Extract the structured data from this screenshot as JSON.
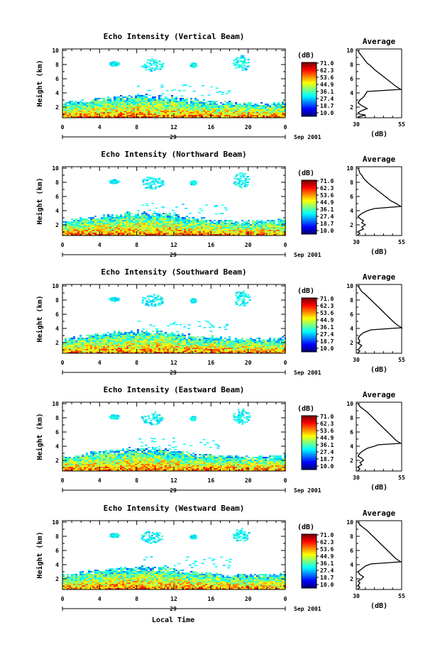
{
  "chart_data": [
    {
      "type": "heatmap",
      "title": "Echo Intensity (Vertical Beam)",
      "ylabel": "Height (km)",
      "xlabel": "",
      "xticks": [
        "0",
        "4",
        "8",
        "12",
        "16",
        "20",
        "0"
      ],
      "xlim": [
        0,
        24
      ],
      "ylim": [
        0.5,
        10.2
      ],
      "yticks": [
        "2",
        "4",
        "6",
        "8",
        "10"
      ],
      "day_label": "29",
      "date_label": "Sep 2001",
      "colorbar": {
        "unit": "(dB)",
        "ticks": [
          "71.0",
          "62.3",
          "53.6",
          "44.9",
          "36.1",
          "27.4",
          "18.7",
          "10.0"
        ]
      },
      "profile": {
        "title": "Average",
        "xlabel": "(dB)",
        "xticks": [
          "30",
          "55"
        ],
        "xlim": [
          30,
          55
        ],
        "yticks": [
          "2",
          "4",
          "6",
          "8",
          "10"
        ],
        "x": [
          31,
          31.5,
          33,
          34.5,
          36,
          38,
          40,
          42,
          44,
          46,
          48,
          50,
          52,
          54.5,
          36,
          35,
          34,
          32,
          31,
          33,
          36,
          33,
          31,
          32,
          35,
          34,
          32,
          31,
          31.5,
          33,
          32,
          31,
          32,
          31,
          31
        ],
        "y": [
          10,
          9.7,
          9.2,
          8.7,
          8.2,
          7.8,
          7.3,
          6.9,
          6.5,
          6.1,
          5.7,
          5.3,
          4.9,
          4.5,
          4.2,
          3.8,
          3.4,
          3.0,
          2.6,
          2.2,
          1.8,
          1.5,
          1.2,
          1.0,
          0.9,
          0.8,
          0.7,
          0.6,
          0.5,
          0.45,
          0.4,
          0.35,
          0.3,
          0.25,
          0.2
        ]
      }
    },
    {
      "type": "heatmap",
      "title": "Echo Intensity (Northward Beam)",
      "ylabel": "Height (km)",
      "xlabel": "",
      "xticks": [
        "0",
        "4",
        "8",
        "12",
        "16",
        "20",
        "0"
      ],
      "xlim": [
        0,
        24
      ],
      "ylim": [
        0.5,
        10.2
      ],
      "yticks": [
        "2",
        "4",
        "6",
        "8",
        "10"
      ],
      "day_label": "29",
      "date_label": "Sep 2001",
      "colorbar": {
        "unit": "(dB)",
        "ticks": [
          "71.0",
          "62.3",
          "53.6",
          "44.9",
          "36.1",
          "27.4",
          "18.7",
          "10.0"
        ]
      },
      "profile": {
        "title": "Average",
        "xlabel": "(dB)",
        "xticks": [
          "30",
          "55"
        ],
        "xlim": [
          30,
          55
        ],
        "yticks": [
          "2",
          "4",
          "6",
          "8",
          "10"
        ],
        "x": [
          31,
          31.5,
          32,
          33,
          34,
          35,
          37,
          39,
          41,
          43,
          45,
          47,
          49,
          52,
          54.5,
          40,
          36,
          33,
          31,
          32,
          34,
          33,
          35,
          33,
          34,
          32,
          31,
          32,
          31,
          31
        ],
        "y": [
          10,
          9.7,
          9.3,
          9.0,
          8.6,
          8.3,
          7.8,
          7.4,
          7.0,
          6.6,
          6.2,
          5.8,
          5.4,
          5.0,
          4.6,
          4.3,
          4.0,
          3.6,
          3.2,
          2.9,
          2.6,
          2.3,
          2.0,
          1.7,
          1.4,
          1.2,
          1.0,
          0.8,
          0.6,
          0.5
        ]
      }
    },
    {
      "type": "heatmap",
      "title": "Echo Intensity (Southward Beam)",
      "ylabel": "Height (km)",
      "xlabel": "",
      "xticks": [
        "0",
        "4",
        "8",
        "12",
        "16",
        "20",
        "0"
      ],
      "xlim": [
        0,
        24
      ],
      "ylim": [
        0.5,
        10.2
      ],
      "yticks": [
        "2",
        "4",
        "6",
        "8",
        "10"
      ],
      "day_label": "29",
      "date_label": "Sep 2001",
      "colorbar": {
        "unit": "(dB)",
        "ticks": [
          "71.0",
          "62.3",
          "53.6",
          "44.9",
          "36.1",
          "27.4",
          "18.7",
          "10.0"
        ]
      },
      "profile": {
        "title": "Average",
        "xlabel": "(dB)",
        "xticks": [
          "30",
          "55"
        ],
        "xlim": [
          30,
          55
        ],
        "yticks": [
          "2",
          "4",
          "6",
          "8",
          "10"
        ],
        "x": [
          31,
          32,
          33,
          35,
          37,
          39,
          41,
          43,
          45,
          47,
          49,
          51,
          53,
          55,
          38,
          34,
          32,
          31,
          32,
          31,
          33,
          32,
          31,
          32,
          31,
          31
        ],
        "y": [
          10,
          9.6,
          9.2,
          8.8,
          8.3,
          7.8,
          7.3,
          6.8,
          6.3,
          5.8,
          5.3,
          4.8,
          4.4,
          4.1,
          3.8,
          3.4,
          3.0,
          2.6,
          2.2,
          1.9,
          1.6,
          1.3,
          1.0,
          0.8,
          0.6,
          0.5
        ]
      }
    },
    {
      "type": "heatmap",
      "title": "Echo Intensity (Eastward Beam)",
      "ylabel": "Height (km)",
      "xlabel": "",
      "xticks": [
        "0",
        "4",
        "8",
        "12",
        "16",
        "20",
        "0"
      ],
      "xlim": [
        0,
        24
      ],
      "ylim": [
        0.5,
        10.2
      ],
      "yticks": [
        "2",
        "4",
        "6",
        "8",
        "10"
      ],
      "day_label": "29",
      "date_label": "Sep 2001",
      "colorbar": {
        "unit": "(dB)",
        "ticks": [
          "71.0",
          "62.3",
          "53.6",
          "44.9",
          "36.1",
          "27.4",
          "18.7",
          "10.0"
        ]
      },
      "profile": {
        "title": "Average",
        "xlabel": "(dB)",
        "xticks": [
          "30",
          "55"
        ],
        "xlim": [
          30,
          55
        ],
        "yticks": [
          "2",
          "4",
          "6",
          "8",
          "10"
        ],
        "x": [
          31,
          32,
          34,
          36,
          38,
          40,
          42,
          44,
          46,
          48,
          50,
          52,
          54.5,
          42,
          40,
          36,
          34,
          32,
          31,
          33,
          34,
          32,
          33,
          31,
          32,
          31,
          31
        ],
        "y": [
          10,
          9.6,
          9.2,
          8.8,
          8.3,
          7.8,
          7.3,
          6.8,
          6.3,
          5.8,
          5.3,
          4.8,
          4.4,
          4.2,
          4.0,
          3.7,
          3.4,
          3.0,
          2.6,
          2.3,
          2.0,
          1.7,
          1.4,
          1.1,
          0.8,
          0.6,
          0.5
        ]
      }
    },
    {
      "type": "heatmap",
      "title": "Echo Intensity (Westward Beam)",
      "ylabel": "Height (km)",
      "xlabel": "Local Time",
      "xticks": [
        "0",
        "4",
        "8",
        "12",
        "16",
        "20",
        "0"
      ],
      "xlim": [
        0,
        24
      ],
      "ylim": [
        0.5,
        10.2
      ],
      "yticks": [
        "2",
        "4",
        "6",
        "8",
        "10"
      ],
      "day_label": "29",
      "date_label": "Sep 2001",
      "colorbar": {
        "unit": "(dB)",
        "ticks": [
          "71.0",
          "62.3",
          "53.6",
          "44.9",
          "36.1",
          "27.4",
          "18.7",
          "10.0"
        ]
      },
      "profile": {
        "title": "Average",
        "xlabel": "(dB)",
        "xticks": [
          "30",
          "55"
        ],
        "xlim": [
          30,
          55
        ],
        "yticks": [
          "2",
          "4",
          "6",
          "8",
          "10"
        ],
        "x": [
          31,
          32,
          34,
          36,
          38,
          40,
          42,
          44,
          46,
          48,
          50,
          52,
          54.5,
          38,
          35,
          33,
          31,
          32,
          34,
          33,
          31,
          32,
          31,
          32,
          31,
          31
        ],
        "y": [
          10,
          9.6,
          9.2,
          8.8,
          8.3,
          7.8,
          7.3,
          6.8,
          6.3,
          5.8,
          5.3,
          4.8,
          4.4,
          4.1,
          3.8,
          3.4,
          3.0,
          2.6,
          2.3,
          2.0,
          1.7,
          1.4,
          1.1,
          0.8,
          0.6,
          0.5
        ]
      }
    }
  ]
}
